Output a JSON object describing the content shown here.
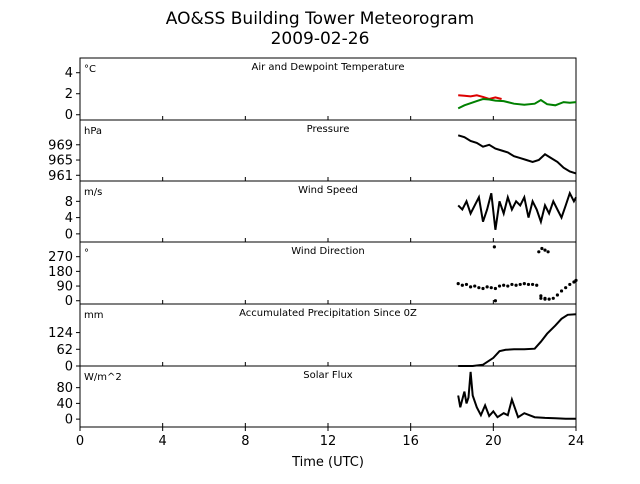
{
  "title_line1": "AO&SS Building Tower Meteorogram",
  "title_line2": "2009-02-26",
  "chart_data": {
    "type": "line",
    "xlabel": "Time (UTC)",
    "xlim": [
      0,
      24
    ],
    "xticks": [
      0,
      4,
      8,
      12,
      16,
      20,
      24
    ],
    "grid": false,
    "panels": [
      {
        "id": "temp",
        "title": "Air and Dewpoint Temperature",
        "unit": "°C",
        "ylim": [
          -0.5,
          5.4
        ],
        "yticks": [
          0,
          2,
          4
        ],
        "series": [
          {
            "color": "#dd0000",
            "style": "line",
            "x": [
              18.3,
              18.6,
              18.9,
              19.2,
              19.5,
              19.8,
              20.1,
              20.4
            ],
            "y": [
              1.85,
              1.8,
              1.75,
              1.85,
              1.7,
              1.5,
              1.65,
              1.5
            ]
          },
          {
            "color": "#008000",
            "style": "line",
            "x": [
              18.3,
              18.6,
              18.9,
              19.2,
              19.5,
              19.8,
              20.1,
              20.5,
              21.0,
              21.5,
              22.0,
              22.3,
              22.6,
              23.0,
              23.4,
              23.7,
              24.0
            ],
            "y": [
              0.6,
              0.9,
              1.1,
              1.3,
              1.5,
              1.45,
              1.35,
              1.3,
              1.05,
              0.95,
              1.05,
              1.4,
              1.0,
              0.9,
              1.2,
              1.15,
              1.2
            ]
          }
        ]
      },
      {
        "id": "pressure",
        "title": "Pressure",
        "unit": "hPa",
        "ylim": [
          959.5,
          975.5
        ],
        "yticks": [
          961,
          965,
          969
        ],
        "series": [
          {
            "color": "#000000",
            "style": "line",
            "x": [
              18.3,
              18.6,
              18.9,
              19.2,
              19.5,
              19.8,
              20.1,
              20.4,
              20.7,
              21.0,
              21.3,
              21.6,
              21.9,
              22.2,
              22.5,
              22.8,
              23.1,
              23.4,
              23.7,
              24.0
            ],
            "y": [
              971.5,
              971,
              970,
              969.5,
              968.5,
              969,
              968,
              967.5,
              967,
              966,
              965.5,
              965,
              964.5,
              965,
              966.5,
              965.5,
              964.5,
              963,
              962,
              961.5
            ]
          }
        ]
      },
      {
        "id": "windspeed",
        "title": "Wind Speed",
        "unit": "m/s",
        "ylim": [
          -2,
          13
        ],
        "yticks": [
          0,
          4,
          8
        ],
        "series": [
          {
            "color": "#000000",
            "style": "line",
            "x": [
              18.3,
              18.5,
              18.7,
              18.9,
              19.1,
              19.3,
              19.5,
              19.7,
              19.9,
              20.1,
              20.3,
              20.5,
              20.7,
              20.9,
              21.1,
              21.3,
              21.5,
              21.7,
              21.9,
              22.1,
              22.3,
              22.5,
              22.7,
              22.9,
              23.1,
              23.3,
              23.5,
              23.7,
              23.9,
              24.0
            ],
            "y": [
              7,
              6,
              8,
              5,
              7,
              9,
              3,
              6,
              10,
              1,
              8,
              5,
              9,
              6,
              8,
              7,
              9,
              4,
              8,
              6,
              3,
              7,
              5,
              8,
              6,
              4,
              7,
              10,
              8,
              9
            ]
          }
        ]
      },
      {
        "id": "winddir",
        "title": "Wind Direction",
        "unit": "°",
        "ylim": [
          -20,
          360
        ],
        "yticks": [
          0,
          90,
          180,
          270
        ],
        "series": [
          {
            "color": "#000000",
            "style": "dots",
            "x": [
              18.3,
              18.5,
              18.7,
              18.9,
              19.1,
              19.3,
              19.5,
              19.7,
              19.9,
              20.1,
              20.3,
              20.5,
              20.7,
              20.9,
              21.1,
              21.3,
              21.5,
              21.7,
              21.9,
              22.1,
              22.3,
              22.5,
              22.7,
              22.9,
              23.1,
              23.3,
              23.5,
              23.7,
              23.9,
              24.0,
              20.05,
              22.2,
              22.35,
              22.5,
              22.65,
              22.3,
              22.5,
              20.1
            ],
            "y": [
              105,
              95,
              100,
              85,
              90,
              80,
              75,
              85,
              80,
              75,
              90,
              95,
              90,
              100,
              95,
              100,
              105,
              100,
              100,
              95,
              30,
              15,
              10,
              15,
              35,
              60,
              80,
              100,
              115,
              125,
              330,
              300,
              320,
              310,
              300,
              15,
              10,
              0
            ]
          }
        ]
      },
      {
        "id": "precip",
        "title": "Accumulated Precipitation Since 0Z",
        "unit": "mm",
        "ylim": [
          0,
          230
        ],
        "yticks": [
          0,
          62,
          124
        ],
        "series": [
          {
            "color": "#000000",
            "style": "line",
            "x": [
              18.3,
              19.0,
              19.5,
              20.0,
              20.3,
              20.6,
              21.0,
              21.5,
              22.0,
              22.3,
              22.6,
              23.0,
              23.3,
              23.6,
              24.0
            ],
            "y": [
              0,
              0,
              5,
              30,
              55,
              60,
              62,
              62,
              64,
              90,
              120,
              150,
              175,
              190,
              192
            ]
          }
        ]
      },
      {
        "id": "solar",
        "title": "Solar Flux",
        "unit": "W/m^2",
        "ylim": [
          -20,
          135
        ],
        "yticks": [
          0,
          40,
          80
        ],
        "series": [
          {
            "color": "#000000",
            "style": "line",
            "x": [
              18.3,
              18.4,
              18.5,
              18.6,
              18.7,
              18.8,
              18.9,
              19.0,
              19.2,
              19.4,
              19.6,
              19.8,
              20.0,
              20.2,
              20.5,
              20.7,
              20.9,
              21.2,
              21.5,
              22.0,
              22.5,
              23.0,
              23.5,
              24.0
            ],
            "y": [
              60,
              30,
              50,
              70,
              40,
              55,
              120,
              60,
              30,
              10,
              35,
              8,
              20,
              5,
              15,
              10,
              50,
              5,
              15,
              5,
              3,
              2,
              1,
              1
            ]
          }
        ]
      }
    ]
  }
}
